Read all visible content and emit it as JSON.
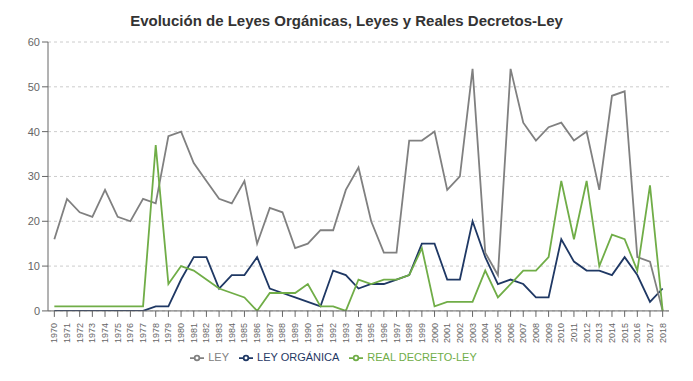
{
  "chart_data": {
    "type": "line",
    "title": "Evolución de Leyes Orgánicas, Leyes y Reales Decretos-Ley",
    "x": [
      1970,
      1971,
      1972,
      1973,
      1974,
      1975,
      1976,
      1977,
      1978,
      1979,
      1980,
      1981,
      1982,
      1983,
      1984,
      1985,
      1986,
      1987,
      1988,
      1989,
      1990,
      1991,
      1992,
      1993,
      1994,
      1995,
      1996,
      1997,
      1998,
      1999,
      2000,
      2001,
      2002,
      2003,
      2004,
      2005,
      2006,
      2007,
      2008,
      2009,
      2010,
      2011,
      2012,
      2013,
      2014,
      2015,
      2016,
      2017,
      2018
    ],
    "series": [
      {
        "name": "LEY ORGÁNICA",
        "color": "#1f3864",
        "values": [
          0,
          0,
          0,
          0,
          0,
          0,
          0,
          0,
          1,
          1,
          7,
          12,
          12,
          5,
          8,
          8,
          12,
          5,
          4,
          3,
          2,
          1,
          9,
          8,
          5,
          6,
          6,
          7,
          8,
          15,
          15,
          7,
          7,
          20,
          12,
          6,
          7,
          6,
          3,
          3,
          16,
          11,
          9,
          9,
          8,
          12,
          8,
          2,
          5
        ]
      },
      {
        "name": "LEY",
        "color": "#808080",
        "values": [
          16,
          25,
          22,
          21,
          27,
          21,
          20,
          25,
          24,
          39,
          40,
          33,
          29,
          25,
          24,
          29,
          15,
          23,
          22,
          14,
          15,
          18,
          18,
          27,
          32,
          20,
          13,
          13,
          38,
          38,
          40,
          27,
          30,
          54,
          13,
          8,
          54,
          42,
          38,
          41,
          42,
          38,
          40,
          27,
          48,
          49,
          12,
          11,
          0
        ]
      },
      {
        "name": "REAL DECRETO-LEY",
        "color": "#70ad47",
        "values": [
          1,
          1,
          1,
          1,
          1,
          1,
          1,
          1,
          37,
          6,
          10,
          9,
          7,
          5,
          4,
          3,
          0,
          4,
          4,
          4,
          6,
          1,
          1,
          0,
          7,
          6,
          7,
          7,
          8,
          14,
          1,
          2,
          2,
          2,
          9,
          3,
          6,
          9,
          9,
          12,
          29,
          16,
          29,
          10,
          17,
          16,
          9,
          28,
          0
        ]
      }
    ],
    "xlim": [
      1969.5,
      2018.5
    ],
    "xticks": [
      1970,
      1971,
      1972,
      1973,
      1974,
      1975,
      1976,
      1977,
      1978,
      1979,
      1980,
      1981,
      1982,
      1983,
      1984,
      1985,
      1986,
      1987,
      1988,
      1989,
      1990,
      1991,
      1992,
      1993,
      1994,
      1995,
      1996,
      1997,
      1998,
      1999,
      2000,
      2001,
      2002,
      2003,
      2004,
      2005,
      2006,
      2007,
      2008,
      2009,
      2010,
      2011,
      2012,
      2013,
      2014,
      2015,
      2016,
      2017,
      2018
    ],
    "ylim": [
      0,
      60
    ],
    "yticks": [
      0,
      10,
      20,
      30,
      40,
      50,
      60
    ],
    "grid": "y",
    "legend": "bottom"
  }
}
